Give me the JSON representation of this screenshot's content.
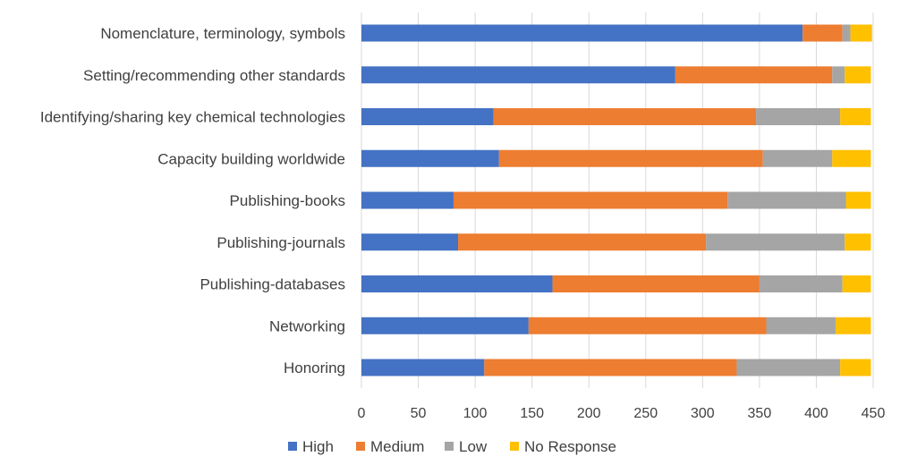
{
  "chart_data": {
    "type": "bar",
    "orientation": "horizontal",
    "stacked": true,
    "categories": [
      "Nomenclature, terminology, symbols",
      "Setting/recommending other standards",
      "Identifying/sharing key chemical technologies",
      "Capacity building worldwide",
      "Publishing-books",
      "Publishing-journals",
      "Publishing-databases",
      "Networking",
      "Honoring"
    ],
    "series": [
      {
        "name": "High",
        "color": "#4472C4",
        "values": [
          388,
          276,
          116,
          121,
          81,
          85,
          168,
          147,
          108
        ]
      },
      {
        "name": "Medium",
        "color": "#ED7D31",
        "values": [
          35,
          138,
          231,
          232,
          241,
          218,
          182,
          209,
          222
        ]
      },
      {
        "name": "Low",
        "color": "#A5A5A5",
        "values": [
          7,
          11,
          74,
          61,
          104,
          122,
          73,
          61,
          91
        ]
      },
      {
        "name": "No Response",
        "color": "#FFC000",
        "values": [
          19,
          23,
          27,
          34,
          22,
          23,
          25,
          31,
          27
        ]
      }
    ],
    "xlim": [
      0,
      450
    ],
    "xticks": [
      "0",
      "50",
      "100",
      "150",
      "200",
      "250",
      "300",
      "350",
      "400",
      "450"
    ],
    "grid": true,
    "legend_position": "bottom",
    "title": "",
    "xlabel": "",
    "ylabel": ""
  }
}
